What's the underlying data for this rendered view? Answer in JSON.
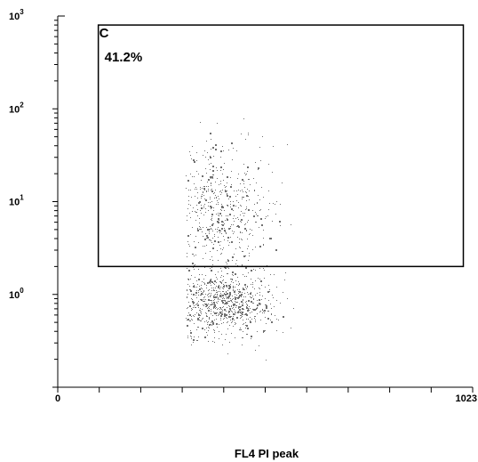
{
  "chart_data": {
    "type": "scatter",
    "xlabel": "FL4 PI peak",
    "ylabel": "",
    "xlim": [
      0,
      1023
    ],
    "ylim": [
      0.1,
      1000
    ],
    "y_scale": "log",
    "x_ticks": [
      {
        "value": 0,
        "label": "0"
      },
      {
        "value": 1023,
        "label": "1023"
      }
    ],
    "y_ticks": [
      {
        "value": 1,
        "base": "10",
        "exp": "0"
      },
      {
        "value": 10,
        "base": "10",
        "exp": "1"
      },
      {
        "value": 100,
        "base": "10",
        "exp": "2"
      },
      {
        "value": 1000,
        "base": "10",
        "exp": "3"
      }
    ],
    "gate": {
      "name": "C",
      "percent_label": "41.2%",
      "x_range": [
        100,
        1000
      ],
      "y_range": [
        2,
        800
      ]
    },
    "point_color": "#707070",
    "clusters": [
      {
        "x_center": 400,
        "x_spread": 65,
        "y_log_center": -0.1,
        "y_log_spread": 0.18,
        "count": 900
      },
      {
        "x_center": 390,
        "x_spread": 70,
        "y_log_center": 0.9,
        "y_log_spread": 0.35,
        "count": 650
      }
    ],
    "x_extent": [
      315,
      580
    ],
    "y_log_extent": [
      -0.75,
      1.95
    ]
  }
}
